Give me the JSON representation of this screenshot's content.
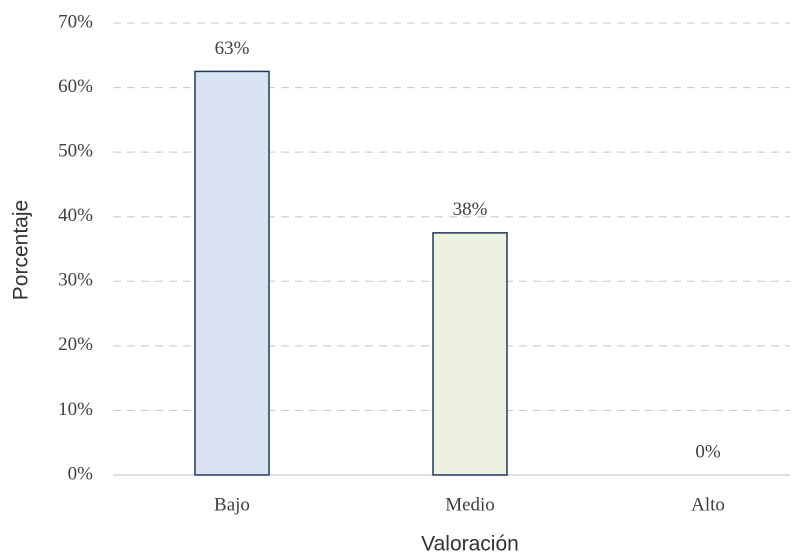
{
  "chart_data": {
    "type": "bar",
    "x_label": "Valoración",
    "y_label": "Porcentaje",
    "categories": [
      "Bajo",
      "Medio",
      "Alto"
    ],
    "values": [
      62.5,
      37.5,
      0
    ],
    "value_labels": [
      "63%",
      "38%",
      "0%"
    ],
    "colors": [
      "#dae3f3",
      "#ebf1de",
      "#dae3f3"
    ],
    "edge_color": "#1f3864",
    "ylim": [
      0,
      70
    ],
    "yticks": [
      {
        "value": 0,
        "label": "0%"
      },
      {
        "value": 10,
        "label": "10%"
      },
      {
        "value": 20,
        "label": "20%"
      },
      {
        "value": 30,
        "label": "30%"
      },
      {
        "value": 40,
        "label": "40%"
      },
      {
        "value": 50,
        "label": "50%"
      },
      {
        "value": 60,
        "label": "60%"
      },
      {
        "value": 70,
        "label": "70%"
      }
    ],
    "grid": true
  }
}
